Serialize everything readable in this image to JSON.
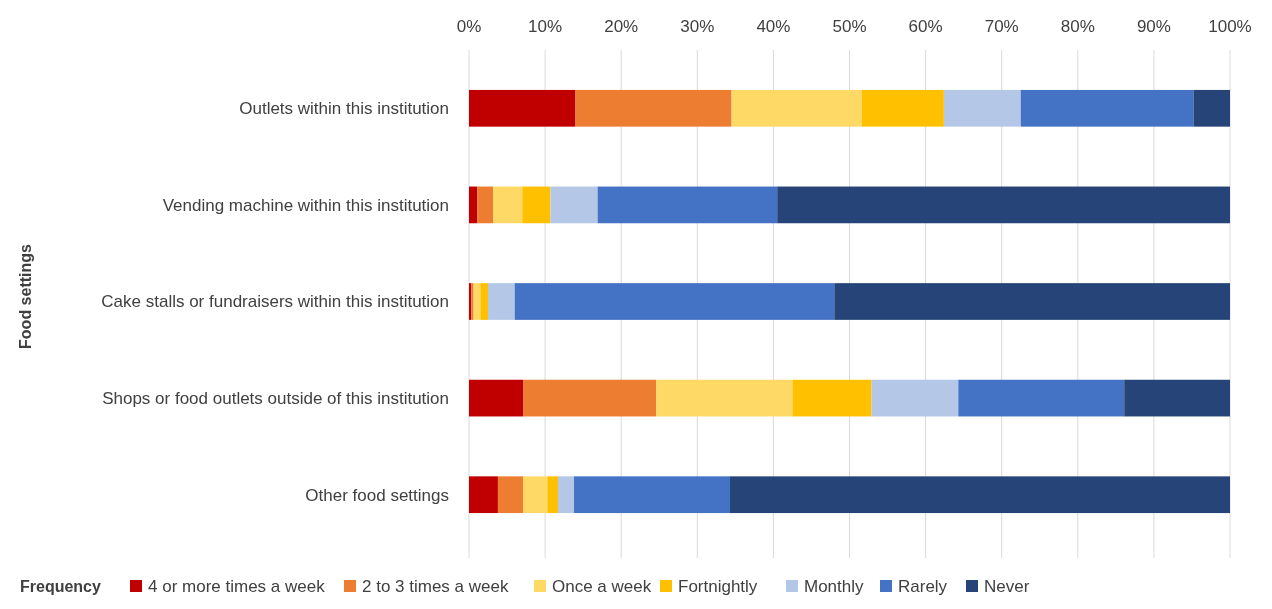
{
  "chart_data": {
    "type": "bar",
    "orientation": "horizontal",
    "stacked": true,
    "ylabel": "Food settings",
    "legend_title": "Frequency",
    "legend": "bottom",
    "grid": "x",
    "categories": [
      "Outlets within this institution",
      "Vending machine within this institution",
      "Cake stalls or fundraisers within this institution",
      "Shops or food outlets outside of this institution",
      "Other food settings"
    ],
    "xlim": [
      0,
      100
    ],
    "xticks": [
      {
        "value": 0,
        "label": "0%"
      },
      {
        "value": 10,
        "label": "10%"
      },
      {
        "value": 20,
        "label": "20%"
      },
      {
        "value": 30,
        "label": "30%"
      },
      {
        "value": 40,
        "label": "40%"
      },
      {
        "value": 50,
        "label": "50%"
      },
      {
        "value": 60,
        "label": "60%"
      },
      {
        "value": 70,
        "label": "70%"
      },
      {
        "value": 80,
        "label": "80%"
      },
      {
        "value": 90,
        "label": "90%"
      },
      {
        "value": 100,
        "label": "100%"
      }
    ],
    "series": [
      {
        "name": "4 or more times a week",
        "color": "#c00000",
        "values": [
          14.0,
          1.1,
          0.3,
          7.1,
          3.8
        ]
      },
      {
        "name": "2 to 3 times a week",
        "color": "#ed7d31",
        "values": [
          20.5,
          2.1,
          0.3,
          17.5,
          3.3
        ]
      },
      {
        "name": "Once a week",
        "color": "#ffd966",
        "values": [
          17.1,
          3.8,
          0.9,
          17.9,
          3.2
        ]
      },
      {
        "name": "Fortnightly",
        "color": "#ffc000",
        "values": [
          10.8,
          3.7,
          1.0,
          10.4,
          1.4
        ]
      },
      {
        "name": "Monthly",
        "color": "#b4c7e7",
        "values": [
          10.1,
          6.2,
          3.5,
          11.4,
          2.1
        ]
      },
      {
        "name": "Rarely",
        "color": "#4472c4",
        "values": [
          22.7,
          23.6,
          42.0,
          21.8,
          20.5
        ]
      },
      {
        "name": "Never",
        "color": "#264478",
        "values": [
          4.8,
          59.5,
          52.0,
          13.9,
          65.7
        ]
      }
    ]
  }
}
